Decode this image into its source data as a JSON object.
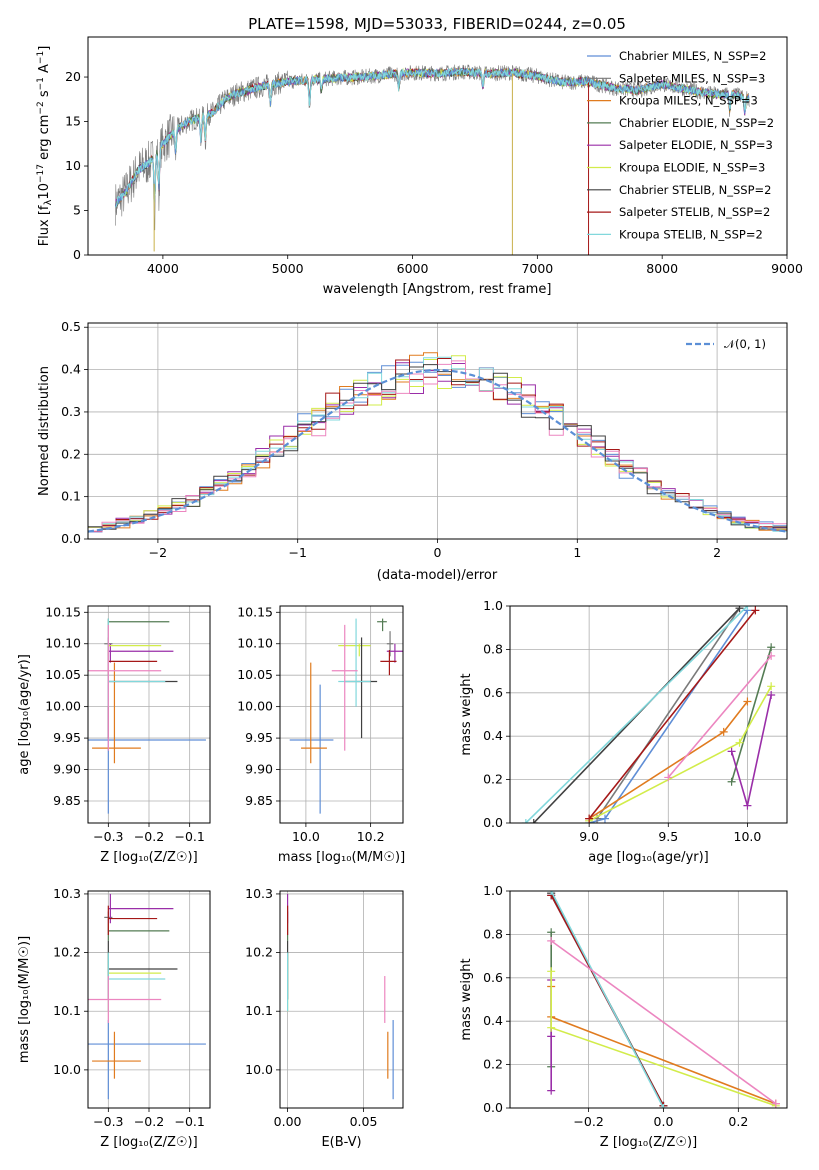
{
  "colors": {
    "chabrier_miles": "#5f8ed6",
    "salpeter_miles": "#7a7a7a",
    "kroupa_miles": "#e07b1f",
    "chabrier_elodie": "#547c54",
    "salpeter_elodie": "#9a2ea8",
    "kroupa_elodie": "#d2ec4a",
    "chabrier_stelib": "#404040",
    "salpeter_stelib": "#a51818",
    "kroupa_stelib": "#82d8dc",
    "normal": "#5b8fd6",
    "pink": "#ec86c0"
  },
  "chart_data": [
    {
      "id": "spectrum",
      "type": "line",
      "title": "PLATE=1598, MJD=53033, FIBERID=0244, z=0.05",
      "xlabel": "wavelength [Angstrom, rest frame]",
      "ylabel": "Flux [f_λ 10⁻¹⁷ erg cm⁻² s⁻¹ A⁻¹]",
      "xlim": [
        3400,
        9000
      ],
      "ylim": [
        0,
        24.5
      ],
      "xticks": [
        "4000",
        "5000",
        "6000",
        "7000",
        "8000",
        "9000"
      ],
      "yticks": [
        "0",
        "5",
        "10",
        "15",
        "20"
      ],
      "legend_position": "top-right",
      "series": [
        {
          "name": "Chabrier MILES, N_SSP=2"
        },
        {
          "name": "Salpeter MILES, N_SSP=3"
        },
        {
          "name": "Kroupa MILES, N_SSP=3"
        },
        {
          "name": "Chabrier ELODIE, N_SSP=2"
        },
        {
          "name": "Salpeter ELODIE, N_SSP=3"
        },
        {
          "name": "Kroupa ELODIE, N_SSP=3"
        },
        {
          "name": "Chabrier STELIB, N_SSP=2"
        },
        {
          "name": "Salpeter STELIB, N_SSP=2"
        },
        {
          "name": "Kroupa STELIB, N_SSP=2"
        }
      ],
      "continuum": {
        "x": [
          3600,
          3700,
          3800,
          3900,
          4000,
          4100,
          4200,
          4300,
          4400,
          4500,
          4600,
          4800,
          5000,
          5200,
          5400,
          5600,
          5800,
          6000,
          6200,
          6400,
          6600,
          6800,
          7000,
          7200,
          7400,
          7600,
          7800,
          8000,
          8200,
          8400,
          8600,
          8700
        ],
        "y": [
          5.5,
          7,
          9.5,
          10.5,
          12.5,
          14,
          15,
          15.5,
          16,
          17.5,
          18.2,
          19,
          19.5,
          19.7,
          19.9,
          20,
          20.3,
          20.5,
          20.4,
          20.6,
          20.4,
          20.5,
          20.1,
          19.4,
          19.5,
          18.8,
          18.5,
          19.2,
          18.6,
          18.1,
          18,
          17.5
        ]
      }
    },
    {
      "id": "residuals",
      "type": "histogram",
      "xlabel": "(data-model)/error",
      "ylabel": "Normed distribution",
      "xlim": [
        -2.5,
        2.5
      ],
      "ylim": [
        0,
        0.51
      ],
      "xticks": [
        "−2",
        "−1",
        "0",
        "1",
        "2"
      ],
      "yticks": [
        "0.0",
        "0.1",
        "0.2",
        "0.3",
        "0.4",
        "0.5"
      ],
      "normal_label": "𝒩(0, 1)",
      "legend_position": "top-right",
      "bin_width": 0.1
    },
    {
      "id": "age_vs_Z",
      "type": "scatter",
      "xlabel": "Z [log₁₀(Z/Z☉)]",
      "ylabel": "age  [log₁₀(age/yr)]",
      "xlim": [
        -0.35,
        -0.05
      ],
      "ylim": [
        9.815,
        10.16
      ],
      "xticks": [
        "−0.3",
        "−0.2",
        "−0.1"
      ],
      "yticks": [
        "9.85",
        "9.90",
        "9.95",
        "10.00",
        "10.05",
        "10.10",
        "10.15"
      ]
    },
    {
      "id": "age_vs_mass",
      "type": "scatter",
      "xlabel": "mass [log₁₀(M/M☉)]",
      "xlim": [
        9.92,
        10.3
      ],
      "ylim": [
        9.815,
        10.16
      ],
      "xticks": [
        "10.0",
        "10.2"
      ],
      "yticks": [
        "9.85",
        "9.90",
        "9.95",
        "10.00",
        "10.05",
        "10.10",
        "10.15"
      ]
    },
    {
      "id": "weight_vs_age",
      "type": "line",
      "xlabel": "age  [log₁₀(age/yr)]",
      "ylabel": "mass weight",
      "xlim": [
        8.5,
        10.25
      ],
      "ylim": [
        0,
        1
      ],
      "xticks": [
        "9.0",
        "9.5",
        "10.0"
      ],
      "yticks": [
        "0.0",
        "0.2",
        "0.4",
        "0.6",
        "0.8",
        "1.0"
      ]
    },
    {
      "id": "mass_vs_Z",
      "type": "scatter",
      "xlabel": "Z [log₁₀(Z/Z☉)]",
      "ylabel": "mass [log₁₀(M/M☉)]",
      "xlim": [
        -0.35,
        -0.05
      ],
      "ylim": [
        9.935,
        10.305
      ],
      "xticks": [
        "−0.3",
        "−0.2",
        "−0.1"
      ],
      "yticks": [
        "10.0",
        "10.1",
        "10.2",
        "10.3"
      ]
    },
    {
      "id": "mass_vs_ebv",
      "type": "scatter",
      "xlabel": "E(B-V)",
      "xlim": [
        -0.005,
        0.076
      ],
      "ylim": [
        9.935,
        10.305
      ],
      "xticks": [
        "0.00",
        "0.05"
      ],
      "yticks": [
        "10.0",
        "10.1",
        "10.2",
        "10.3"
      ]
    },
    {
      "id": "weight_vs_Z",
      "type": "line",
      "xlabel": "Z [log₁₀(Z/Z☉)]",
      "ylabel": "mass weight",
      "xlim": [
        -0.41,
        0.33
      ],
      "ylim": [
        0,
        1
      ],
      "xticks": [
        "−0.2",
        "0.0",
        "0.2"
      ],
      "yticks": [
        "0.0",
        "0.2",
        "0.4",
        "0.6",
        "0.8",
        "1.0"
      ]
    }
  ],
  "fits": [
    {
      "key": "chabrier_miles",
      "Z": -0.3,
      "zlo": -0.35,
      "zhi": -0.06,
      "age": 9.947,
      "alo": 9.83,
      "ahi": 10.035,
      "mass": 10.044,
      "mlo": 9.95,
      "mhi": 10.085,
      "ebv": 0.0695,
      "w_age": [
        [
          9.0,
          0
        ],
        [
          9.1,
          0.02
        ],
        [
          10.0,
          0.98
        ]
      ],
      "w_Z": [
        [
          -0.3,
          0.98
        ],
        [
          0.0,
          0.01
        ]
      ]
    },
    {
      "key": "salpeter_miles",
      "Z": -0.3,
      "zlo": -0.31,
      "zhi": -0.29,
      "age": 10.1,
      "alo": 10.08,
      "ahi": 10.12,
      "mass": 10.26,
      "mlo": 10.25,
      "mhi": 10.27,
      "ebv": 0.0,
      "w_age": [
        [
          9.05,
          0.02
        ],
        [
          9.95,
          0.99
        ]
      ],
      "w_Z": [
        [
          -0.3,
          0.99
        ],
        [
          0.0,
          0.01
        ]
      ]
    },
    {
      "key": "kroupa_miles",
      "Z": -0.285,
      "zlo": -0.34,
      "zhi": -0.22,
      "age": 9.934,
      "alo": 9.91,
      "ahi": 10.07,
      "mass": 10.015,
      "mlo": 9.985,
      "mhi": 10.065,
      "ebv": 0.066,
      "w_age": [
        [
          9.0,
          0.02
        ],
        [
          9.85,
          0.42
        ],
        [
          10.0,
          0.56
        ]
      ],
      "w_Z": [
        [
          -0.3,
          0.56
        ],
        [
          -0.3,
          0.42
        ],
        [
          0.3,
          0.02
        ]
      ]
    },
    {
      "key": "chabrier_elodie",
      "Z": -0.3,
      "zlo": -0.3,
      "zhi": -0.15,
      "age": 10.135,
      "alo": 10.12,
      "ahi": 10.14,
      "mass": 10.237,
      "mlo": 10.22,
      "mhi": 10.25,
      "ebv": 0.0,
      "w_age": [
        [
          9.9,
          0.19
        ],
        [
          10.15,
          0.81
        ]
      ],
      "w_Z": [
        [
          -0.3,
          0.81
        ],
        [
          -0.3,
          0.19
        ]
      ]
    },
    {
      "key": "salpeter_elodie",
      "Z": -0.295,
      "zlo": -0.3,
      "zhi": -0.14,
      "age": 10.088,
      "alo": 10.07,
      "ahi": 10.1,
      "mass": 10.275,
      "mlo": 10.25,
      "mhi": 10.3,
      "ebv": 0.0,
      "w_age": [
        [
          9.9,
          0.33
        ],
        [
          10.0,
          0.08
        ],
        [
          10.15,
          0.59
        ]
      ],
      "w_Z": [
        [
          -0.3,
          0.59
        ],
        [
          -0.3,
          0.33
        ],
        [
          -0.3,
          0.08
        ]
      ]
    },
    {
      "key": "kroupa_elodie",
      "Z": -0.3,
      "zlo": -0.3,
      "zhi": -0.17,
      "age": 10.097,
      "alo": 10.08,
      "ahi": 10.1,
      "mass": 10.165,
      "mlo": 10.1,
      "mhi": 10.2,
      "ebv": 0.0,
      "w_age": [
        [
          9.0,
          0.01
        ],
        [
          9.95,
          0.37
        ],
        [
          10.15,
          0.63
        ]
      ],
      "w_Z": [
        [
          -0.3,
          0.63
        ],
        [
          -0.3,
          0.37
        ],
        [
          0.3,
          0.01
        ]
      ]
    },
    {
      "key": "chabrier_stelib",
      "Z": -0.3,
      "zlo": -0.3,
      "zhi": -0.13,
      "age": 10.04,
      "alo": 9.95,
      "ahi": 10.11,
      "mass": 10.172,
      "mlo": 10.12,
      "mhi": 10.22,
      "ebv": 0.0,
      "w_age": [
        [
          8.65,
          0
        ],
        [
          9.95,
          0.99
        ]
      ],
      "w_Z": [
        [
          -0.3,
          0.99
        ],
        [
          0.0,
          0.01
        ]
      ]
    },
    {
      "key": "salpeter_stelib",
      "Z": -0.3,
      "zlo": -0.3,
      "zhi": -0.18,
      "age": 10.072,
      "alo": 10.05,
      "ahi": 10.09,
      "mass": 10.258,
      "mlo": 10.23,
      "mhi": 10.28,
      "ebv": 0.0,
      "w_age": [
        [
          9.0,
          0.02
        ],
        [
          10.05,
          0.98
        ]
      ],
      "w_Z": [
        [
          -0.3,
          0.98
        ],
        [
          0.0,
          0.01
        ]
      ]
    },
    {
      "key": "kroupa_stelib",
      "Z": -0.3,
      "zlo": -0.3,
      "zhi": -0.16,
      "age": 10.04,
      "alo": 10.0,
      "ahi": 10.14,
      "mass": 10.155,
      "mlo": 10.1,
      "mhi": 10.2,
      "ebv": 0.0,
      "w_age": [
        [
          8.6,
          0
        ],
        [
          10.0,
          1.0
        ]
      ],
      "w_Z": [
        [
          -0.3,
          1.0
        ],
        [
          0.0,
          0.0
        ]
      ]
    },
    {
      "key": "pink",
      "Z": -0.3,
      "zlo": -0.35,
      "zhi": -0.17,
      "age": 10.057,
      "alo": 9.93,
      "ahi": 10.13,
      "mass": 10.12,
      "mlo": 10.08,
      "mhi": 10.16,
      "ebv": 0.064,
      "w_age": [
        [
          9.5,
          0.21
        ],
        [
          10.15,
          0.77
        ]
      ],
      "w_Z": [
        [
          -0.3,
          0.77
        ],
        [
          0.3,
          0.02
        ]
      ]
    }
  ]
}
